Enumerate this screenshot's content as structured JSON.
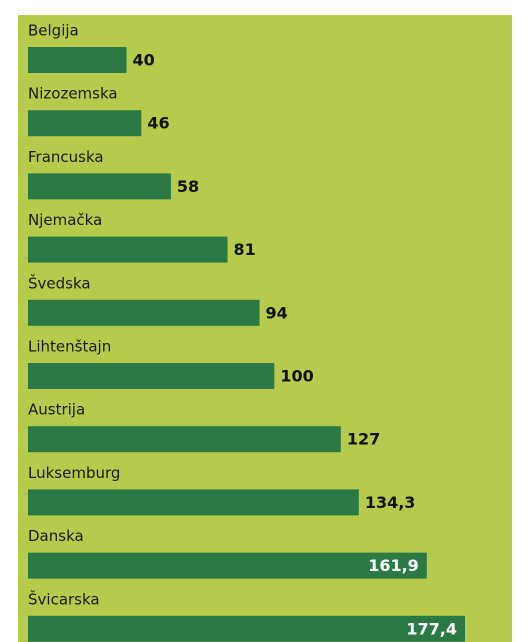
{
  "chart_data": {
    "type": "barh",
    "categories": [
      "Belgija",
      "Nizozemska",
      "Francuska",
      "Njemačka",
      "Švedska",
      "Lihtenštajn",
      "Austrija",
      "Luksemburg",
      "Danska",
      "Švicarska"
    ],
    "values": [
      40,
      46,
      58,
      81,
      94,
      100,
      127,
      134.3,
      161.9,
      177.4
    ],
    "value_labels": [
      "40",
      "46",
      "58",
      "81",
      "94",
      "100",
      "127",
      "134,3",
      "161,9",
      "177,4"
    ],
    "color": "#2b7a45",
    "background": "#b7ca4c"
  }
}
